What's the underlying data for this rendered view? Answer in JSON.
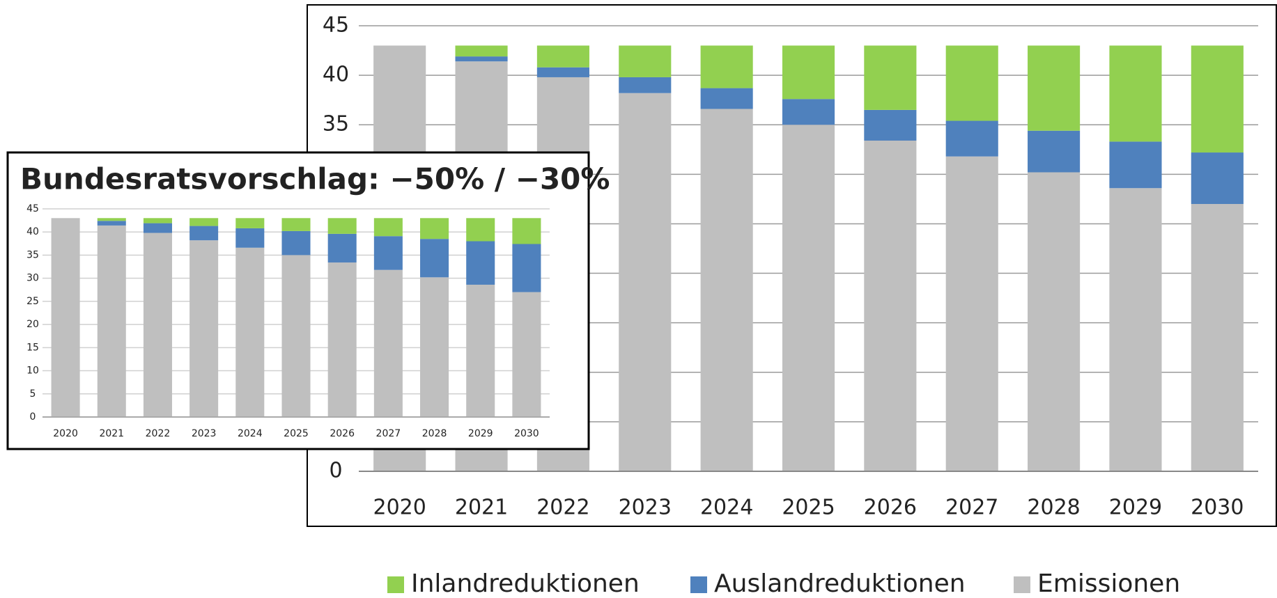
{
  "chart_data": [
    {
      "type": "bar",
      "stacked": true,
      "grid": true,
      "categories": [
        "2020",
        "2021",
        "2022",
        "2023",
        "2024",
        "2025",
        "2026",
        "2027",
        "2028",
        "2029",
        "2030"
      ],
      "ylim": [
        0,
        45
      ],
      "yticks": [
        0,
        5,
        10,
        15,
        20,
        25,
        30,
        35,
        40,
        45
      ],
      "series": [
        {
          "name": "Inlandreduktionen",
          "color": "#92d050",
          "values": [
            0,
            1.1,
            2.2,
            3.2,
            4.3,
            5.4,
            6.5,
            7.6,
            8.6,
            9.7,
            10.8
          ]
        },
        {
          "name": "Auslandreduktionen",
          "color": "#4f81bd",
          "values": [
            0,
            0.5,
            1,
            1.6,
            2.1,
            2.6,
            3.1,
            3.6,
            4.2,
            4.7,
            5.2
          ]
        },
        {
          "name": "Emissionen",
          "color": "#bfbfbf",
          "values": [
            43,
            41.4,
            39.8,
            38.2,
            36.6,
            35,
            33.4,
            31.8,
            30.2,
            28.6,
            27
          ]
        }
      ]
    },
    {
      "type": "bar",
      "stacked": true,
      "grid": true,
      "title": "Bundesratsvorschlag: −50% / −30%",
      "categories": [
        "2020",
        "2021",
        "2022",
        "2023",
        "2024",
        "2025",
        "2026",
        "2027",
        "2028",
        "2029",
        "2030"
      ],
      "ylim": [
        0,
        45
      ],
      "yticks": [
        0,
        5,
        10,
        15,
        20,
        25,
        30,
        35,
        40,
        45
      ],
      "series": [
        {
          "color": "#92d050",
          "values": [
            0,
            0.6,
            1.1,
            1.7,
            2.2,
            2.8,
            3.4,
            3.9,
            4.5,
            5,
            5.6
          ]
        },
        {
          "color": "#4f81bd",
          "values": [
            0,
            1,
            2.1,
            3.1,
            4.2,
            5.2,
            6.2,
            7.3,
            8.3,
            9.4,
            10.4
          ]
        },
        {
          "color": "#bfbfbf",
          "values": [
            43,
            41.4,
            39.8,
            38.2,
            36.6,
            35,
            33.4,
            31.8,
            30.2,
            28.6,
            27
          ]
        }
      ]
    }
  ]
}
